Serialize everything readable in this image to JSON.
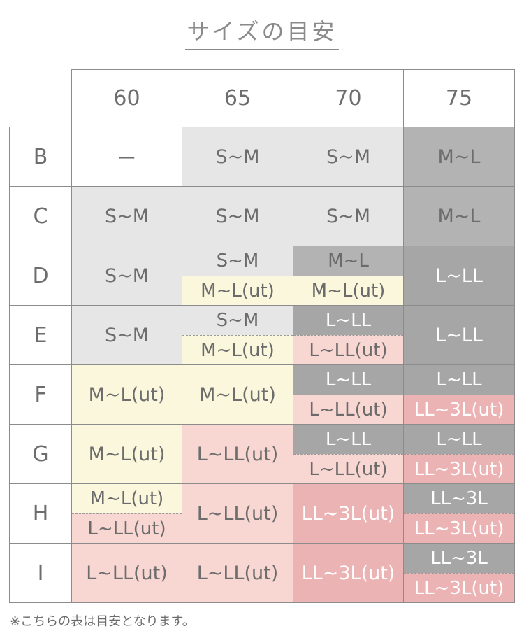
{
  "title": "サイズの目安",
  "colors": {
    "white": "#ffffff",
    "light_gray": "#e6e6e6",
    "gray": "#b3b3b3",
    "dark_gray": "#a6a6a6",
    "cream": "#faf7dc",
    "pink": "#f8d6d2",
    "rose": "#ecb3b5"
  },
  "columns": [
    "60",
    "65",
    "70",
    "75"
  ],
  "rows": [
    {
      "label": "B",
      "cells": [
        {
          "text": "ー",
          "bg": "white"
        },
        {
          "text": "S~M",
          "bg": "light_gray"
        },
        {
          "text": "S~M",
          "bg": "light_gray"
        },
        {
          "text": "M~L",
          "bg": "gray"
        }
      ]
    },
    {
      "label": "C",
      "cells": [
        {
          "text": "S~M",
          "bg": "light_gray"
        },
        {
          "text": "S~M",
          "bg": "light_gray"
        },
        {
          "text": "S~M",
          "bg": "light_gray"
        },
        {
          "text": "M~L",
          "bg": "gray"
        }
      ]
    },
    {
      "label": "D",
      "cells": [
        {
          "text": "S~M",
          "bg": "light_gray"
        },
        {
          "top": "S~M",
          "top_bg": "light_gray",
          "bottom": "M~L(ut)",
          "bottom_bg": "cream"
        },
        {
          "top": "M~L",
          "top_bg": "gray",
          "bottom": "M~L(ut)",
          "bottom_bg": "cream"
        },
        {
          "text": "L~LL",
          "bg": "dark_gray",
          "light": true
        }
      ]
    },
    {
      "label": "E",
      "cells": [
        {
          "text": "S~M",
          "bg": "light_gray"
        },
        {
          "top": "S~M",
          "top_bg": "light_gray",
          "bottom": "M~L(ut)",
          "bottom_bg": "cream"
        },
        {
          "top": "L~LL",
          "top_bg": "dark_gray",
          "top_light": true,
          "bottom": "L~LL(ut)",
          "bottom_bg": "pink"
        },
        {
          "text": "L~LL",
          "bg": "dark_gray",
          "light": true
        }
      ]
    },
    {
      "label": "F",
      "cells": [
        {
          "text": "M~L(ut)",
          "bg": "cream"
        },
        {
          "text": "M~L(ut)",
          "bg": "cream"
        },
        {
          "top": "L~LL",
          "top_bg": "dark_gray",
          "top_light": true,
          "bottom": "L~LL(ut)",
          "bottom_bg": "pink"
        },
        {
          "top": "L~LL",
          "top_bg": "dark_gray",
          "top_light": true,
          "bottom": "LL~3L(ut)",
          "bottom_bg": "rose",
          "bottom_light": true
        }
      ]
    },
    {
      "label": "G",
      "cells": [
        {
          "text": "M~L(ut)",
          "bg": "cream"
        },
        {
          "text": "L~LL(ut)",
          "bg": "pink"
        },
        {
          "top": "L~LL",
          "top_bg": "dark_gray",
          "top_light": true,
          "bottom": "L~LL(ut)",
          "bottom_bg": "pink"
        },
        {
          "top": "L~LL",
          "top_bg": "dark_gray",
          "top_light": true,
          "bottom": "LL~3L(ut)",
          "bottom_bg": "rose",
          "bottom_light": true
        }
      ]
    },
    {
      "label": "H",
      "cells": [
        {
          "top": "M~L(ut)",
          "top_bg": "cream",
          "bottom": "L~LL(ut)",
          "bottom_bg": "pink"
        },
        {
          "text": "L~LL(ut)",
          "bg": "pink"
        },
        {
          "text": "LL~3L(ut)",
          "bg": "rose",
          "light": true
        },
        {
          "top": "LL~3L",
          "top_bg": "dark_gray",
          "top_light": true,
          "bottom": "LL~3L(ut)",
          "bottom_bg": "rose",
          "bottom_light": true
        }
      ]
    },
    {
      "label": "I",
      "cells": [
        {
          "text": "L~LL(ut)",
          "bg": "pink"
        },
        {
          "text": "L~LL(ut)",
          "bg": "pink"
        },
        {
          "text": "LL~3L(ut)",
          "bg": "rose",
          "light": true
        },
        {
          "top": "LL~3L",
          "top_bg": "dark_gray",
          "top_light": true,
          "bottom": "LL~3L(ut)",
          "bottom_bg": "rose",
          "bottom_light": true
        }
      ]
    }
  ],
  "note": "※こちらの表は目安となります。"
}
